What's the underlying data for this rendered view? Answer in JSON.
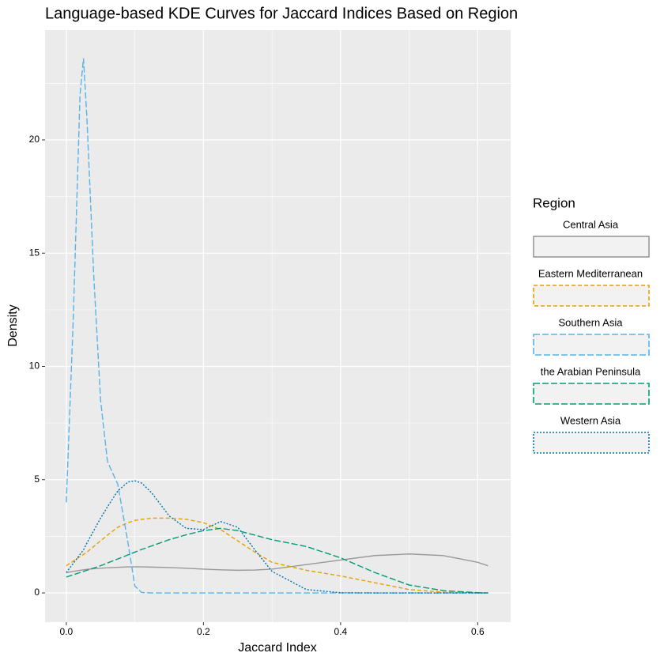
{
  "chart_data": {
    "type": "line",
    "title": "Language-based KDE Curves for Jaccard Indices Based on Region",
    "x_label": "Jaccard Index",
    "y_label": "Density",
    "legend_title": "Region",
    "x": [
      0,
      0.01,
      0.02,
      0.025,
      0.03,
      0.04,
      0.05,
      0.06,
      0.075,
      0.09,
      0.1,
      0.11,
      0.125,
      0.15,
      0.175,
      0.2,
      0.225,
      0.25,
      0.275,
      0.3,
      0.35,
      0.4,
      0.45,
      0.5,
      0.55,
      0.6,
      0.615
    ],
    "series": [
      {
        "name": "Central Asia",
        "color": "#999999",
        "linetype": "solid",
        "values": [
          0.9,
          0.95,
          1.0,
          1.02,
          1.04,
          1.07,
          1.09,
          1.11,
          1.13,
          1.15,
          1.15,
          1.15,
          1.14,
          1.12,
          1.09,
          1.05,
          1.02,
          1.0,
          1.01,
          1.05,
          1.25,
          1.45,
          1.65,
          1.72,
          1.65,
          1.35,
          1.2
        ]
      },
      {
        "name": "Eastern Mediterranean",
        "color": "#E69F00",
        "linetype": "dashed",
        "values": [
          1.2,
          1.4,
          1.6,
          1.7,
          1.8,
          2.05,
          2.3,
          2.55,
          2.9,
          3.1,
          3.2,
          3.25,
          3.3,
          3.3,
          3.25,
          3.1,
          2.8,
          2.3,
          1.8,
          1.35,
          1.0,
          0.75,
          0.45,
          0.15,
          0.03,
          0.0,
          0.0
        ]
      },
      {
        "name": "Southern Asia",
        "color": "#56B4E9",
        "linetype": "longdash",
        "values": [
          4,
          12,
          22,
          23.6,
          21,
          14,
          8.5,
          5.8,
          4.8,
          2.2,
          0.3,
          0.02,
          0,
          0,
          0,
          0,
          0,
          0,
          0,
          0,
          0,
          0,
          0,
          0,
          0,
          0,
          0
        ]
      },
      {
        "name": "the Arabian Peninsula",
        "color": "#009E73",
        "linetype": "longdash",
        "values": [
          0.7,
          0.8,
          0.9,
          0.95,
          1.0,
          1.1,
          1.2,
          1.32,
          1.5,
          1.68,
          1.8,
          1.92,
          2.08,
          2.35,
          2.57,
          2.75,
          2.85,
          2.75,
          2.55,
          2.35,
          2.05,
          1.55,
          0.9,
          0.35,
          0.1,
          0.01,
          0
        ]
      },
      {
        "name": "Western Asia",
        "color": "#0072B2",
        "linetype": "dotted",
        "values": [
          0.9,
          1.3,
          1.7,
          1.9,
          2.2,
          2.75,
          3.3,
          3.8,
          4.5,
          4.9,
          4.95,
          4.85,
          4.4,
          3.4,
          2.85,
          2.8,
          3.15,
          2.9,
          1.9,
          0.95,
          0.15,
          0.01,
          0,
          0,
          0,
          0,
          0
        ]
      }
    ],
    "xlim": [
      -0.031,
      0.648
    ],
    "ylim": [
      -1.29,
      24.85
    ],
    "xticks": [
      {
        "value": 0,
        "label": "0.0"
      },
      {
        "value": 0.2,
        "label": "0.2"
      },
      {
        "value": 0.4,
        "label": "0.4"
      },
      {
        "value": 0.6,
        "label": "0.6"
      }
    ],
    "yticks": [
      0,
      5,
      10,
      15,
      20
    ],
    "grid": true,
    "minor_grid": true,
    "legend_position": "right"
  }
}
